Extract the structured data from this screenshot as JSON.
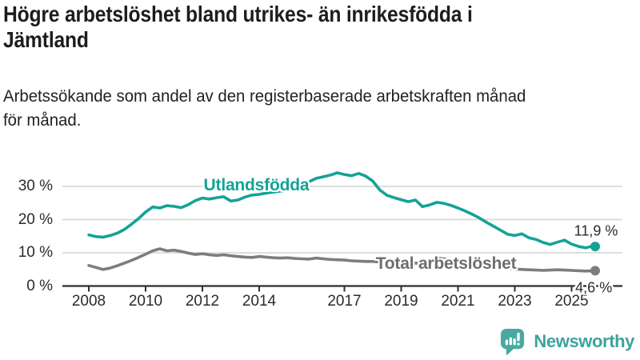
{
  "header": {
    "title": "Högre arbetslöshet bland utrikes- än inrikesfödda i\nJämtland",
    "subtitle": "Arbetssökande som andel av den registerbaserade arbetskraften månad\nför månad."
  },
  "footer": {
    "logo_text": "Newsworthy"
  },
  "colors": {
    "teal": "#14a396",
    "gray": "#7d7d7d",
    "grid": "#d4d4d4",
    "axis": "#2e2e2e",
    "logo": "#4aa8a0"
  },
  "chart_data": {
    "type": "line",
    "unit": "%",
    "x_range": [
      2008.0,
      2025.83
    ],
    "ylim": [
      0,
      36
    ],
    "grid": "horizontal",
    "legend_position": "inline-labels",
    "start_year": 2008.0,
    "step_years": 0.25,
    "x_ticks": [
      {
        "year": 2008,
        "label": "2008"
      },
      {
        "year": 2010,
        "label": "2010"
      },
      {
        "year": 2012,
        "label": "2012"
      },
      {
        "year": 2014,
        "label": "2014"
      },
      {
        "year": 2017,
        "label": "2017"
      },
      {
        "year": 2019,
        "label": "2019"
      },
      {
        "year": 2021,
        "label": "2021"
      },
      {
        "year": 2023,
        "label": "2023"
      },
      {
        "year": 2025,
        "label": "2025"
      }
    ],
    "y_ticks": [
      {
        "value": 0,
        "label": "0 %"
      },
      {
        "value": 10,
        "label": "10 %"
      },
      {
        "value": 20,
        "label": "20 %"
      },
      {
        "value": 30,
        "label": "30 %"
      }
    ],
    "series": [
      {
        "name": "Utlandsfödda",
        "color": "#14a396",
        "values": [
          15.4,
          14.9,
          14.7,
          15.2,
          15.9,
          17.0,
          18.6,
          20.3,
          22.3,
          23.8,
          23.5,
          24.2,
          24.0,
          23.6,
          24.5,
          25.7,
          26.5,
          26.2,
          26.6,
          26.9,
          25.6,
          25.9,
          26.8,
          27.4,
          27.6,
          28.0,
          28.3,
          28.6,
          28.9,
          29.5,
          30.3,
          31.4,
          32.4,
          32.9,
          33.4,
          34.1,
          33.6,
          33.2,
          33.9,
          33.1,
          31.6,
          28.9,
          27.3,
          26.6,
          26.0,
          25.4,
          25.9,
          23.9,
          24.4,
          25.2,
          24.9,
          24.3,
          23.5,
          22.6,
          21.6,
          20.5,
          19.2,
          18.0,
          16.8,
          15.6,
          15.2,
          15.7,
          14.5,
          14.0,
          13.1,
          12.5,
          13.2,
          13.8,
          12.6,
          11.9,
          11.5,
          12.1
        ],
        "final": {
          "t": 2025.83,
          "value": 11.9
        },
        "end_label": "11,9 %"
      },
      {
        "name": "Total arbetslöshet",
        "color": "#7d7d7d",
        "values": [
          6.2,
          5.6,
          5.0,
          5.4,
          6.1,
          6.9,
          7.7,
          8.6,
          9.6,
          10.6,
          11.2,
          10.6,
          10.8,
          10.4,
          9.9,
          9.5,
          9.7,
          9.4,
          9.2,
          9.4,
          9.1,
          8.9,
          8.7,
          8.6,
          8.9,
          8.7,
          8.5,
          8.4,
          8.5,
          8.3,
          8.2,
          8.1,
          8.4,
          8.2,
          8.0,
          7.9,
          7.8,
          7.6,
          7.5,
          7.4,
          7.4,
          7.2,
          7.1,
          7.0,
          7.0,
          6.9,
          6.9,
          6.8,
          7.2,
          8.4,
          8.2,
          7.9,
          7.8,
          7.4,
          7.0,
          6.6,
          6.1,
          5.8,
          5.5,
          5.3,
          5.1,
          5.0,
          4.9,
          4.8,
          4.7,
          4.8,
          4.9,
          4.8,
          4.7,
          4.6,
          4.5,
          4.6
        ],
        "final": {
          "t": 2025.83,
          "value": 4.6
        },
        "end_label": "4,6 %"
      }
    ],
    "annotations": {
      "utlands_label": {
        "text": "Utlandsfödda",
        "t": 2013.9,
        "v": 30.2
      },
      "total_label": {
        "text": "Total arbetslöshet",
        "t": 2020.58,
        "v": 6.6
      },
      "teal_end_value": {
        "text": "11,9 %",
        "t": 2025.86,
        "v": 16.6
      },
      "gray_end_value": {
        "text": "4,6 %",
        "t": 2025.78,
        "v": -0.55
      }
    }
  }
}
